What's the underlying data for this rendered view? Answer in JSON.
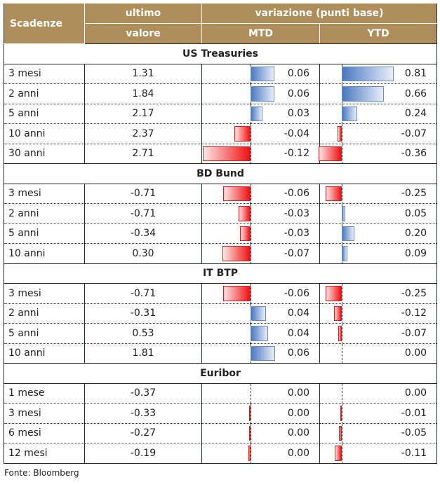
{
  "header": {
    "scadenze": "Scadenze",
    "ultimo": "ultimo",
    "valore": "valore",
    "variazione": "variazione (punti base)",
    "mtd": "MTD",
    "ytd": "YTD"
  },
  "colors": {
    "header_bg": "#ae8f5b",
    "positive": "#4a78c2",
    "negative": "#f01010"
  },
  "sections": [
    {
      "title": "US Treasuries",
      "rows": [
        {
          "label": "3 mesi",
          "value": "1.31",
          "mtd": "0.06",
          "ytd": "0.81",
          "mtd_bar": 0.06,
          "ytd_bar": 0.81
        },
        {
          "label": "2 anni",
          "value": "1.84",
          "mtd": "0.06",
          "ytd": "0.66",
          "mtd_bar": 0.06,
          "ytd_bar": 0.66
        },
        {
          "label": "5 anni",
          "value": "2.17",
          "mtd": "0.03",
          "ytd": "0.24",
          "mtd_bar": 0.03,
          "ytd_bar": 0.24
        },
        {
          "label": "10 anni",
          "value": "2.37",
          "mtd": "-0.04",
          "ytd": "-0.07",
          "mtd_bar": -0.04,
          "ytd_bar": -0.07
        },
        {
          "label": "30 anni",
          "value": "2.71",
          "mtd": "-0.12",
          "ytd": "-0.36",
          "mtd_bar": -0.12,
          "ytd_bar": -0.36
        }
      ]
    },
    {
      "title": "BD Bund",
      "rows": [
        {
          "label": "3 mesi",
          "value": "-0.71",
          "mtd": "-0.06",
          "ytd": "-0.25",
          "mtd_bar": -0.068,
          "ytd_bar": -0.25
        },
        {
          "label": "2 anni",
          "value": "-0.71",
          "mtd": "-0.03",
          "ytd": "0.05",
          "mtd_bar": -0.03,
          "ytd_bar": 0.05
        },
        {
          "label": "5 anni",
          "value": "-0.34",
          "mtd": "-0.03",
          "ytd": "0.20",
          "mtd_bar": -0.027,
          "ytd_bar": 0.2
        },
        {
          "label": "10 anni",
          "value": "0.30",
          "mtd": "-0.07",
          "ytd": "0.09",
          "mtd_bar": -0.07,
          "ytd_bar": 0.09
        }
      ]
    },
    {
      "title": "IT BTP",
      "rows": [
        {
          "label": "3 mesi",
          "value": "-0.71",
          "mtd": "-0.06",
          "ytd": "-0.25",
          "mtd_bar": -0.068,
          "ytd_bar": -0.25
        },
        {
          "label": "2 anni",
          "value": "-0.31",
          "mtd": "0.04",
          "ytd": "-0.12",
          "mtd_bar": 0.038,
          "ytd_bar": -0.12
        },
        {
          "label": "5 anni",
          "value": "0.53",
          "mtd": "0.04",
          "ytd": "-0.07",
          "mtd_bar": 0.043,
          "ytd_bar": -0.06
        },
        {
          "label": "10 anni",
          "value": "1.81",
          "mtd": "0.06",
          "ytd": "0.00",
          "mtd_bar": 0.062,
          "ytd_bar": 0
        }
      ]
    },
    {
      "title": "Euribor",
      "rows": [
        {
          "label": "1 mese",
          "value": "-0.37",
          "mtd": "0.00",
          "ytd": "0.00",
          "mtd_bar": 0,
          "ytd_bar": 0
        },
        {
          "label": "3 mesi",
          "value": "-0.33",
          "mtd": "0.00",
          "ytd": "-0.01",
          "mtd_bar": -0.003,
          "ytd_bar": -0.004
        },
        {
          "label": "6 mesi",
          "value": "-0.27",
          "mtd": "0.00",
          "ytd": "-0.05",
          "mtd_bar": -0.001,
          "ytd_bar": -0.04
        },
        {
          "label": "12 mesi",
          "value": "-0.19",
          "mtd": "0.00",
          "ytd": "-0.11",
          "mtd_bar": -0.006,
          "ytd_bar": -0.11
        }
      ]
    }
  ],
  "footer": "Fonte: Bloomberg"
}
